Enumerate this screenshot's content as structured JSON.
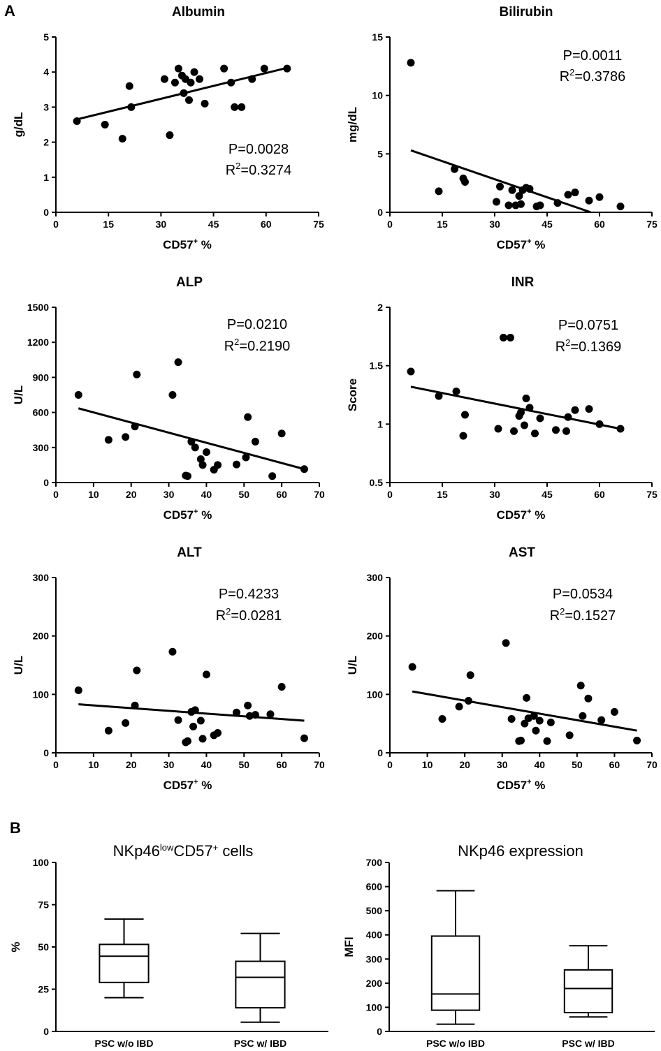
{
  "panels": {
    "a": "A",
    "b": "B"
  },
  "chart_data": [
    {
      "type": "scatter",
      "title": "Albumin",
      "xlabel": "CD57",
      "xlabel_sup": "+",
      "xlabel_suffix": " %",
      "ylabel": "g/dL",
      "xlim": [
        0,
        75
      ],
      "ylim": [
        0,
        5
      ],
      "xticks": [
        0,
        15,
        30,
        45,
        60,
        75
      ],
      "yticks": [
        0,
        1,
        2,
        3,
        4,
        5
      ],
      "x": [
        6,
        14,
        19,
        21,
        21.5,
        31,
        32.5,
        34,
        35,
        36,
        36.5,
        37,
        38,
        38.5,
        39.5,
        41,
        42.5,
        48,
        50,
        51,
        53,
        56,
        59.5,
        66
      ],
      "y": [
        2.6,
        2.5,
        2.1,
        3.6,
        3.0,
        3.8,
        2.2,
        3.7,
        4.1,
        3.9,
        3.4,
        3.8,
        3.2,
        3.7,
        4.0,
        3.8,
        3.1,
        4.1,
        3.7,
        3.0,
        3.0,
        3.8,
        4.1,
        4.1
      ],
      "fit": [
        [
          6,
          2.65
        ],
        [
          66,
          4.12
        ]
      ],
      "p_text": "P=0.0028",
      "r2_prefix": "R",
      "r2_sup": "2",
      "r2_value": "=0.3274"
    },
    {
      "type": "scatter",
      "title": "Bilirubin",
      "xlabel": "CD57",
      "xlabel_sup": "+",
      "xlabel_suffix": " %",
      "ylabel": "mg/dL",
      "xlim": [
        0,
        75
      ],
      "ylim": [
        0,
        15
      ],
      "xticks": [
        0,
        15,
        30,
        45,
        60,
        75
      ],
      "yticks": [
        0,
        5,
        10,
        15
      ],
      "x": [
        6,
        14,
        18.5,
        21,
        21.5,
        30.5,
        31.5,
        34,
        35,
        36,
        37,
        37.5,
        38,
        39,
        40,
        42,
        43,
        48,
        51,
        53,
        57,
        60,
        66
      ],
      "y": [
        12.8,
        1.8,
        3.7,
        2.9,
        2.6,
        0.9,
        2.2,
        0.6,
        1.9,
        0.6,
        1.4,
        0.7,
        1.9,
        2.1,
        2.0,
        0.5,
        0.6,
        0.8,
        1.5,
        1.7,
        1.0,
        1.3,
        0.5
      ],
      "fit": [
        [
          6,
          5.3
        ],
        [
          57.5,
          0
        ]
      ],
      "p_text": "P=0.0011",
      "r2_prefix": "R",
      "r2_sup": "2",
      "r2_value": "=0.3786"
    },
    {
      "type": "scatter",
      "title": "ALP",
      "xlabel": "CD57",
      "xlabel_sup": "+",
      "xlabel_suffix": " %",
      "ylabel": "U/L",
      "xlim": [
        0,
        70
      ],
      "ylim": [
        0,
        1500
      ],
      "xticks": [
        0,
        10,
        20,
        30,
        40,
        50,
        60,
        70
      ],
      "yticks": [
        0,
        300,
        600,
        900,
        1200,
        1500
      ],
      "x": [
        6,
        14,
        18.5,
        21,
        21.5,
        31,
        32.5,
        34.5,
        35,
        36,
        37,
        38.5,
        39,
        40,
        42,
        43,
        48,
        50.5,
        51,
        53,
        57.5,
        60,
        66
      ],
      "y": [
        750,
        365,
        390,
        480,
        925,
        750,
        1030,
        60,
        55,
        350,
        300,
        200,
        150,
        260,
        110,
        150,
        155,
        215,
        560,
        350,
        55,
        420,
        115
      ],
      "fit": [
        [
          6,
          635
        ],
        [
          66,
          115
        ]
      ],
      "p_text": "P=0.0210",
      "r2_prefix": "R",
      "r2_sup": "2",
      "r2_value": "=0.2190"
    },
    {
      "type": "scatter",
      "title": "INR",
      "xlabel": "CD57",
      "xlabel_sup": "+",
      "xlabel_suffix": " %",
      "ylabel": "Score",
      "xlim": [
        0,
        75
      ],
      "ylim": [
        0.5,
        2.0
      ],
      "xticks": [
        0,
        15,
        30,
        45,
        60,
        75
      ],
      "yticks": [
        0.5,
        1.0,
        1.5,
        2.0
      ],
      "x": [
        6,
        14,
        19,
        21,
        21.5,
        31,
        32.5,
        34.5,
        35.5,
        37,
        37.5,
        38.5,
        39,
        40,
        41.5,
        43,
        47.5,
        50.5,
        51,
        53,
        57,
        60,
        66
      ],
      "y": [
        1.45,
        1.24,
        1.28,
        0.9,
        1.08,
        0.96,
        1.74,
        1.74,
        0.94,
        1.07,
        1.1,
        0.99,
        1.22,
        1.14,
        0.92,
        1.05,
        0.95,
        0.94,
        1.06,
        1.12,
        1.13,
        1.0,
        0.96
      ],
      "fit": [
        [
          6,
          1.32
        ],
        [
          66,
          0.96
        ]
      ],
      "p_text": "P=0.0751",
      "r2_prefix": "R",
      "r2_sup": "2",
      "r2_value": "=0.1369"
    },
    {
      "type": "scatter",
      "title": "ALT",
      "xlabel": "CD57",
      "xlabel_sup": "+",
      "xlabel_suffix": " %",
      "ylabel": "U/L",
      "xlim": [
        0,
        70
      ],
      "ylim": [
        0,
        300
      ],
      "xticks": [
        0,
        10,
        20,
        30,
        40,
        50,
        60,
        70
      ],
      "yticks": [
        0,
        100,
        200,
        300
      ],
      "x": [
        6,
        14,
        18.5,
        21,
        21.5,
        31,
        32.5,
        34.5,
        35,
        36,
        36.5,
        37,
        38.5,
        39,
        40,
        42,
        43,
        48,
        51,
        51.5,
        53,
        57,
        60,
        66
      ],
      "y": [
        107,
        38,
        51,
        81,
        141,
        173,
        56,
        18,
        20,
        70,
        45,
        73,
        55,
        24,
        134,
        30,
        34,
        69,
        81,
        63,
        65,
        66,
        113,
        25
      ],
      "fit": [
        [
          6,
          83
        ],
        [
          66,
          55
        ]
      ],
      "p_text": "P=0.4233",
      "r2_prefix": "R",
      "r2_sup": "2",
      "r2_value": "=0.0281"
    },
    {
      "type": "scatter",
      "title": "AST",
      "xlabel": "CD57",
      "xlabel_sup": "+",
      "xlabel_suffix": " %",
      "ylabel": "U/L",
      "xlim": [
        0,
        70
      ],
      "ylim": [
        0,
        300
      ],
      "xticks": [
        0,
        10,
        20,
        30,
        40,
        50,
        60,
        70
      ],
      "yticks": [
        0,
        100,
        200,
        300
      ],
      "x": [
        6,
        14,
        18.5,
        21,
        21.5,
        31,
        32.5,
        34.5,
        35,
        36,
        36.5,
        37,
        38.5,
        39,
        40,
        42,
        43,
        48,
        51,
        51.5,
        53,
        56.5,
        60,
        66
      ],
      "y": [
        147,
        58,
        79,
        89,
        133,
        188,
        58,
        20,
        21,
        50,
        94,
        59,
        63,
        38,
        55,
        20,
        52,
        30,
        115,
        63,
        93,
        56,
        70,
        21
      ],
      "fit": [
        [
          6,
          105
        ],
        [
          66,
          38
        ]
      ],
      "p_text": "P=0.0534",
      "r2_prefix": "R",
      "r2_sup": "2",
      "r2_value": "=0.1527"
    },
    {
      "type": "box",
      "title_main": "NKp46",
      "title_sup": "low",
      "title_mid": "CD57",
      "title_sup2": "+",
      "title_tail": " cells",
      "ylabel": "%",
      "ylim": [
        0,
        100
      ],
      "yticks": [
        0,
        25,
        50,
        75,
        100
      ],
      "categories": [
        "PSC w/o IBD",
        "PSC w/ IBD"
      ],
      "boxes": [
        {
          "min": 20,
          "q1": 29,
          "median": 44.5,
          "q3": 51.5,
          "max": 66.5
        },
        {
          "min": 5.5,
          "q1": 14,
          "median": 32,
          "q3": 41.5,
          "max": 58
        }
      ]
    },
    {
      "type": "box",
      "title_main": "NKp46 expression",
      "ylabel": "MFI",
      "ylim": [
        0,
        700
      ],
      "yticks": [
        0,
        100,
        200,
        300,
        400,
        500,
        600,
        700
      ],
      "categories": [
        "PSC w/o IBD",
        "PSC w/ IBD"
      ],
      "boxes": [
        {
          "min": 30,
          "q1": 88,
          "median": 155,
          "q3": 395,
          "max": 583
        },
        {
          "min": 60,
          "q1": 78,
          "median": 178,
          "q3": 255,
          "max": 355
        }
      ]
    }
  ]
}
